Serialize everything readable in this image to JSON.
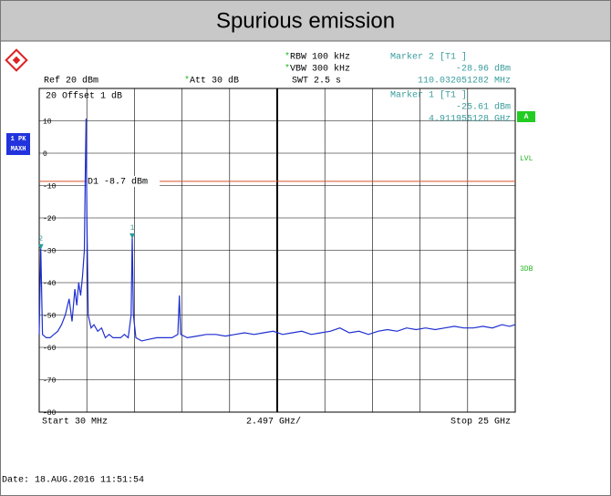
{
  "chart_data": {
    "type": "line",
    "title": "Spurious emission",
    "ref": "Ref 20 dBm",
    "offset": "20 Offset 1 dB",
    "settings": [
      {
        "text": "RBW 100 kHz",
        "star": true
      },
      {
        "text": "VBW 300 kHz",
        "star": true
      },
      {
        "text": "SWT 2.5 s",
        "star": false
      },
      {
        "text": "Att 30 dB",
        "star": true
      }
    ],
    "markers": [
      {
        "name": "2",
        "label": "Marker 2 [T1 ]",
        "value": -28.96,
        "value_label": "-28.96 dBm",
        "x": 0.110032051282,
        "x_label": "110.032051282 MHz"
      },
      {
        "name": "1",
        "label": "Marker 1 [T1 ]",
        "value": -25.61,
        "value_label": "-25.61 dBm",
        "x": 4.911955128,
        "x_label": "4.911955128 GHz"
      }
    ],
    "display_line": {
      "value": -8.7,
      "label": "D1 -8.7 dBm",
      "color": "#d9532c"
    },
    "trace_label": [
      "1 PK",
      "MAXH"
    ],
    "side_labels": {
      "a": "A",
      "lvl": "LVL",
      "db": "3DB"
    },
    "x_start": "Start 30 MHz",
    "x_div": "2.497 GHz/",
    "x_stop": "Stop 25 GHz",
    "date": "Date: 18.AUG.2016 11:51:54",
    "color": "#1f2fd0",
    "xlim": [
      0.03,
      25
    ],
    "ylim": [
      -80,
      20
    ],
    "yticks": [
      10,
      0,
      -10,
      -20,
      -30,
      -40,
      -50,
      -60,
      -70,
      -80
    ],
    "grid": true,
    "x": [
      0.03,
      0.11,
      0.2,
      0.4,
      0.6,
      0.8,
      1.0,
      1.2,
      1.4,
      1.6,
      1.75,
      1.9,
      2.0,
      2.1,
      2.2,
      2.3,
      2.4,
      2.45,
      2.49,
      2.53,
      2.6,
      2.75,
      2.9,
      3.1,
      3.3,
      3.5,
      3.7,
      3.9,
      4.1,
      4.3,
      4.5,
      4.7,
      4.85,
      4.91,
      4.97,
      5.1,
      5.4,
      5.8,
      6.2,
      6.6,
      7.0,
      7.3,
      7.38,
      7.45,
      7.8,
      8.3,
      8.8,
      9.3,
      9.8,
      10.3,
      10.8,
      11.3,
      11.8,
      12.3,
      12.8,
      13.3,
      13.8,
      14.3,
      14.8,
      15.3,
      15.8,
      16.3,
      16.8,
      17.3,
      17.8,
      18.3,
      18.8,
      19.3,
      19.8,
      20.3,
      20.8,
      21.3,
      21.8,
      22.3,
      22.8,
      23.3,
      23.8,
      24.3,
      24.7,
      25
    ],
    "values": [
      -56,
      -28.96,
      -56,
      -57,
      -57,
      -56,
      -55,
      -53,
      -50,
      -45,
      -52,
      -42,
      -47,
      -40,
      -44,
      -38,
      -30,
      -5,
      10.7,
      -20,
      -50,
      -54,
      -53,
      -55,
      -54,
      -57,
      -56,
      -57,
      -57,
      -57,
      -56,
      -57,
      -50,
      -25.61,
      -50,
      -57,
      -58,
      -57.5,
      -57,
      -57,
      -57,
      -56,
      -44,
      -56,
      -57,
      -56.5,
      -56,
      -56,
      -56.5,
      -56,
      -55.5,
      -56,
      -55.5,
      -55,
      -56,
      -55.5,
      -55,
      -56,
      -55.5,
      -55,
      -54,
      -55.5,
      -55,
      -56,
      -55,
      -54.5,
      -55,
      -54,
      -54.5,
      -54,
      -54.5,
      -54,
      -53.5,
      -54,
      -54,
      -53.5,
      -54,
      -53,
      -53.5,
      -53
    ]
  }
}
